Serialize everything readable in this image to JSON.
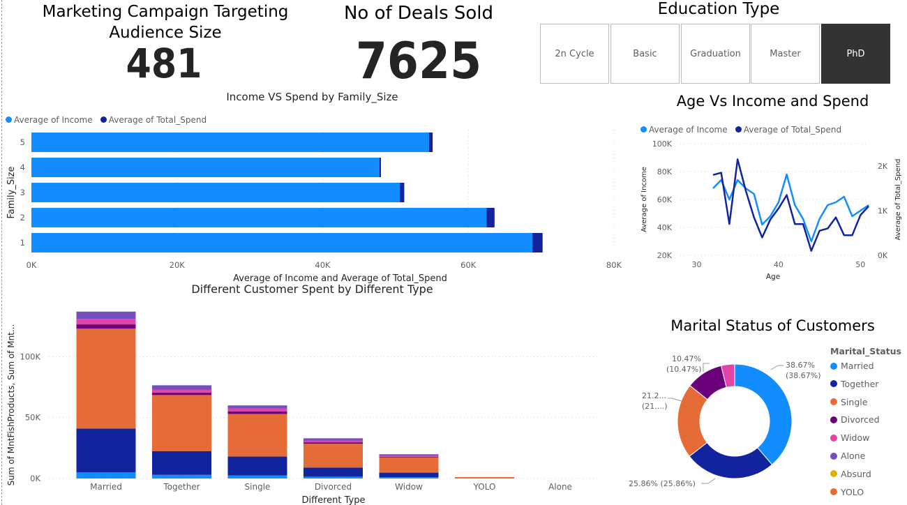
{
  "kpis": {
    "audience_title": "Marketing Campaign Targeting Audience Size",
    "audience_value": "481",
    "deals_title": "No of Deals Sold",
    "deals_value": "7625"
  },
  "education_slicer": {
    "title": "Education Type",
    "options": [
      "2n Cycle",
      "Basic",
      "Graduation",
      "Master",
      "PhD"
    ],
    "selected": "PhD"
  },
  "colors": {
    "income": "#118DFF",
    "spend": "#12239E",
    "orange": "#E66C37",
    "purple": "#6B007B",
    "pink": "#E044A7",
    "violet": "#744EC2",
    "gold": "#D9B300"
  },
  "chart_data": [
    {
      "id": "family",
      "type": "bar",
      "orientation": "horizontal",
      "title": "Income VS Spend by Family_Size",
      "xlabel": "Average of Income and Average of Total_Spend",
      "ylabel": "Family_Size",
      "categories": [
        "5",
        "4",
        "3",
        "2",
        "1"
      ],
      "series": [
        {
          "name": "Average of Income",
          "values": [
            54600,
            47800,
            50600,
            62500,
            68800
          ]
        },
        {
          "name": "Average of Total_Spend",
          "values": [
            500,
            200,
            600,
            1100,
            1400
          ]
        }
      ],
      "stacked": true,
      "xlim": [
        0,
        80000
      ],
      "xticks": [
        "0K",
        "20K",
        "40K",
        "60K",
        "80K"
      ],
      "legend": "top-left"
    },
    {
      "id": "age",
      "type": "line",
      "title": "Age Vs Income and Spend",
      "xlabel": "Age",
      "ylabel": "Average of Income",
      "y2label": "Average of Total_Spend",
      "xlim": [
        28,
        51
      ],
      "xticks": [
        "30",
        "40",
        "50"
      ],
      "ylim": [
        20000,
        100000
      ],
      "yticks": [
        "20K",
        "40K",
        "60K",
        "80K",
        "100K"
      ],
      "y2lim": [
        0,
        2500
      ],
      "y2ticks": [
        "0K",
        "1K",
        "2K"
      ],
      "series": [
        {
          "name": "Average of Income",
          "axis": "left",
          "x": [
            32,
            33,
            34,
            35,
            36,
            37,
            38,
            39,
            40,
            41,
            42,
            43,
            44,
            45,
            46,
            47,
            48,
            49,
            50,
            51
          ],
          "y": [
            68000,
            74000,
            60000,
            74000,
            68000,
            64000,
            42000,
            48000,
            58000,
            78000,
            56000,
            46000,
            30000,
            46000,
            56000,
            58000,
            62000,
            48000,
            52000,
            56000
          ]
        },
        {
          "name": "Average of Total_Spend",
          "axis": "right",
          "x": [
            32,
            33,
            34,
            35,
            36,
            37,
            38,
            39,
            40,
            41,
            42,
            43,
            44,
            45,
            46,
            47,
            48,
            49,
            50,
            51
          ],
          "y": [
            1800,
            1850,
            700,
            2150,
            1450,
            850,
            400,
            800,
            1050,
            1350,
            700,
            700,
            100,
            550,
            600,
            850,
            450,
            450,
            900,
            1100
          ]
        }
      ],
      "legend": "top"
    },
    {
      "id": "customer",
      "type": "bar",
      "stacked": true,
      "title": "Different Customer Spent by Different Type",
      "xlabel": "Different Type",
      "ylabel": "Sum of MntFishProducts, Sum of Mnt...",
      "categories": [
        "Married",
        "Together",
        "Single",
        "Divorced",
        "Widow",
        "YOLO",
        "Alone"
      ],
      "yticks": [
        "0K",
        "50K",
        "100K"
      ],
      "ylim": [
        0,
        138000
      ],
      "series": [
        {
          "values": [
            5000,
            3000,
            2500,
            1500,
            1000,
            0,
            0
          ],
          "color": "#118DFF"
        },
        {
          "values": [
            36000,
            19500,
            15500,
            7500,
            3800,
            0,
            0
          ],
          "color": "#12239E"
        },
        {
          "values": [
            82000,
            46000,
            35000,
            19500,
            12500,
            1200,
            0
          ],
          "color": "#E66C37"
        },
        {
          "values": [
            3500,
            2000,
            2000,
            1200,
            600,
            0,
            0
          ],
          "color": "#6B007B"
        },
        {
          "values": [
            4500,
            2500,
            2500,
            1500,
            800,
            0,
            0
          ],
          "color": "#E044A7"
        },
        {
          "values": [
            6000,
            3500,
            2500,
            1800,
            1200,
            0,
            0
          ],
          "color": "#744EC2"
        }
      ]
    },
    {
      "id": "marital",
      "type": "pie",
      "donut": true,
      "title": "Marital Status of Customers",
      "legend_title": "Marital_Status",
      "labels": [
        "Married",
        "Together",
        "Single",
        "Divorced",
        "Widow",
        "Alone",
        "Absurd",
        "YOLO"
      ],
      "values": [
        38.67,
        25.86,
        21.2,
        10.47,
        3.8,
        0,
        0,
        0
      ],
      "legend": "right",
      "data_labels": [
        {
          "text": "38.67%",
          "sub": "(38.67%)"
        },
        {
          "text": "25.86% (25.86%)",
          "sub": ""
        },
        {
          "text": "21.2...",
          "sub": "(21....)"
        },
        {
          "text": "10.47%",
          "sub": "(10.47%)"
        }
      ]
    }
  ]
}
